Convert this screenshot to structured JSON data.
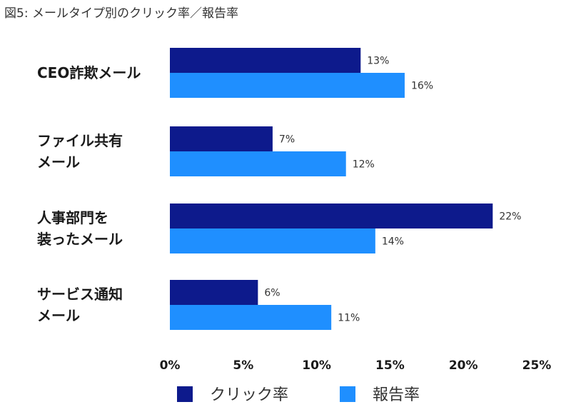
{
  "figure_title": "図5: メールタイプ別のクリック率／報告率",
  "chart_data": {
    "type": "bar",
    "orientation": "horizontal",
    "title": "図5: メールタイプ別のクリック率／報告率",
    "categories": [
      [
        "CEO詐欺メール"
      ],
      [
        "ファイル共有",
        "メール"
      ],
      [
        "人事部門を",
        "装ったメール"
      ],
      [
        "サービス通知",
        "メール"
      ]
    ],
    "series": [
      {
        "name": "クリック率",
        "color": "#0d1a8c",
        "values": [
          13,
          7,
          22,
          6
        ],
        "labels": [
          "13%",
          "7%",
          "22%",
          "6%"
        ]
      },
      {
        "name": "報告率",
        "color": "#1f8fff",
        "values": [
          16,
          12,
          14,
          11
        ],
        "labels": [
          "16%",
          "12%",
          "14%",
          "11%"
        ]
      }
    ],
    "xlim": [
      0,
      25
    ],
    "xticks": [
      0,
      5,
      10,
      15,
      20,
      25
    ],
    "xtick_labels": [
      "0%",
      "5%",
      "10%",
      "15%",
      "20%",
      "25%"
    ],
    "grid": false,
    "legend_position": "bottom-center"
  }
}
